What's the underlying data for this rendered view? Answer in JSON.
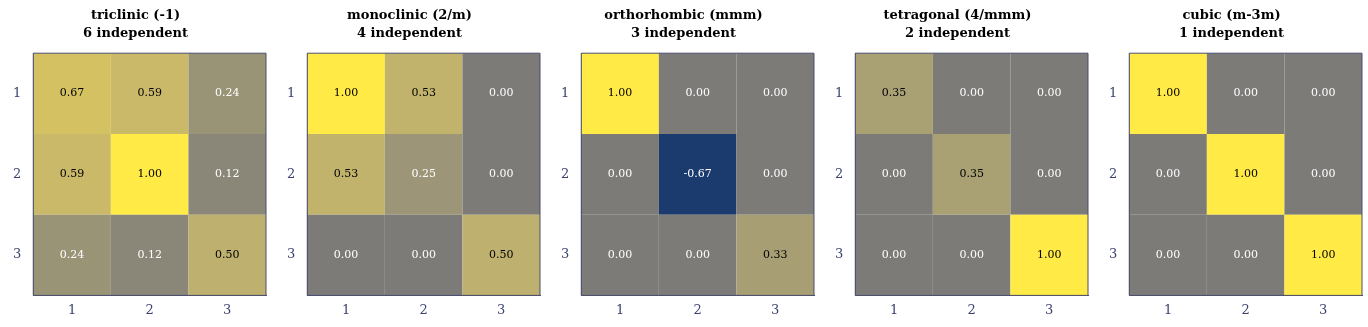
{
  "chart_data": [
    {
      "type": "heatmap",
      "title": "triclinic (-1)",
      "subtitle": "6 independent",
      "categories": [
        "1",
        "2",
        "3"
      ],
      "y_categories": [
        "1",
        "2",
        "3"
      ],
      "cells": [
        [
          0.67,
          0.59,
          0.24
        ],
        [
          0.59,
          1.0,
          0.12
        ],
        [
          0.24,
          0.12,
          0.5
        ]
      ],
      "cell_labels": [
        [
          "0.67",
          "0.59",
          "0.24"
        ],
        [
          "0.59",
          "1.00",
          "0.12"
        ],
        [
          "0.24",
          "0.12",
          "0.50"
        ]
      ]
    },
    {
      "type": "heatmap",
      "title": "monoclinic (2/m)",
      "subtitle": "4 independent",
      "categories": [
        "1",
        "2",
        "3"
      ],
      "y_categories": [
        "1",
        "2",
        "3"
      ],
      "cells": [
        [
          1.0,
          0.53,
          0.0
        ],
        [
          0.53,
          0.25,
          0.0
        ],
        [
          0.0,
          0.0,
          0.5
        ]
      ],
      "cell_labels": [
        [
          "1.00",
          "0.53",
          "0.00"
        ],
        [
          "0.53",
          "0.25",
          "0.00"
        ],
        [
          "0.00",
          "0.00",
          "0.50"
        ]
      ]
    },
    {
      "type": "heatmap",
      "title": "orthorhombic (mmm)",
      "subtitle": "3 independent",
      "categories": [
        "1",
        "2",
        "3"
      ],
      "y_categories": [
        "1",
        "2",
        "3"
      ],
      "cells": [
        [
          1.0,
          0.0,
          0.0
        ],
        [
          0.0,
          -0.67,
          0.0
        ],
        [
          0.0,
          0.0,
          0.33
        ]
      ],
      "cell_labels": [
        [
          "1.00",
          "0.00",
          "0.00"
        ],
        [
          "0.00",
          "-0.67",
          "0.00"
        ],
        [
          "0.00",
          "0.00",
          "0.33"
        ]
      ]
    },
    {
      "type": "heatmap",
      "title": "tetragonal (4/mmm)",
      "subtitle": "2 independent",
      "categories": [
        "1",
        "2",
        "3"
      ],
      "y_categories": [
        "1",
        "2",
        "3"
      ],
      "cells": [
        [
          0.35,
          0.0,
          0.0
        ],
        [
          0.0,
          0.35,
          0.0
        ],
        [
          0.0,
          0.0,
          1.0
        ]
      ],
      "cell_labels": [
        [
          "0.35",
          "0.00",
          "0.00"
        ],
        [
          "0.00",
          "0.35",
          "0.00"
        ],
        [
          "0.00",
          "0.00",
          "1.00"
        ]
      ]
    },
    {
      "type": "heatmap",
      "title": "cubic (m-3m)",
      "subtitle": "1 independent",
      "categories": [
        "1",
        "2",
        "3"
      ],
      "y_categories": [
        "1",
        "2",
        "3"
      ],
      "cells": [
        [
          1.0,
          0.0,
          0.0
        ],
        [
          0.0,
          1.0,
          0.0
        ],
        [
          0.0,
          0.0,
          1.0
        ]
      ],
      "cell_labels": [
        [
          "1.00",
          "0.00",
          "0.00"
        ],
        [
          "0.00",
          "1.00",
          "0.00"
        ],
        [
          "0.00",
          "0.00",
          "1.00"
        ]
      ]
    }
  ]
}
